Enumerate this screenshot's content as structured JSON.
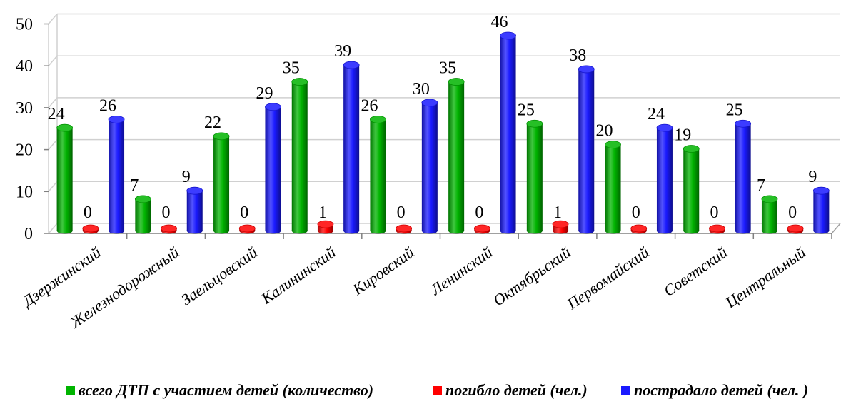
{
  "chart_data": {
    "type": "bar",
    "categories": [
      "Дзержинский",
      "Железнодорожный",
      "Заельцовский",
      "Калининский",
      "Кировский",
      "Ленинский",
      "Октябрьский",
      "Первомайский",
      "Советский",
      "Центральный"
    ],
    "series": [
      {
        "name": "всего ДТП с участием детей (количество)",
        "color": "#00b400",
        "values": [
          24,
          7,
          22,
          35,
          26,
          35,
          25,
          20,
          19,
          7
        ]
      },
      {
        "name": "погибло детей (чел.)",
        "color": "#ff0000",
        "values": [
          0,
          0,
          0,
          1,
          0,
          0,
          1,
          0,
          0,
          0
        ]
      },
      {
        "name": "пострадало детей (чел. )",
        "color": "#1a1aff",
        "values": [
          26,
          9,
          29,
          39,
          30,
          46,
          38,
          24,
          25,
          9
        ]
      }
    ],
    "yticks": [
      "0",
      "10",
      "20",
      "30",
      "40",
      "50"
    ],
    "ylim": [
      0,
      50
    ],
    "grid": true,
    "legend": "bottom",
    "data_labels": true
  }
}
